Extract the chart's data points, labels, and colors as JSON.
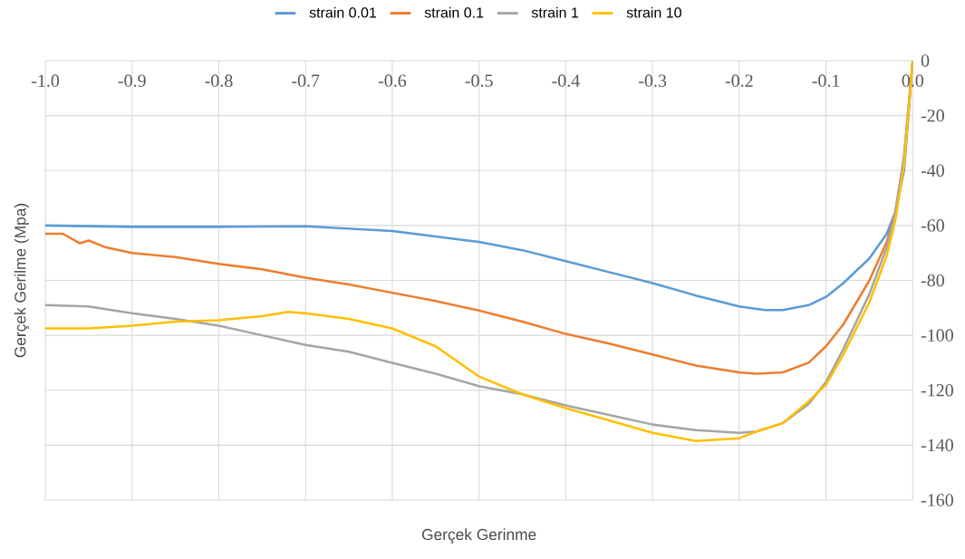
{
  "chart_data": {
    "type": "line",
    "xlabel": "Gerçek Gerinme",
    "ylabel": "Gerçek Gerilme (Mpa)",
    "xlim": [
      -1.0,
      0.0
    ],
    "ylim": [
      -160,
      0
    ],
    "xticks": [
      {
        "value": -1.0,
        "label": "-1.0"
      },
      {
        "value": -0.9,
        "label": "-0.9"
      },
      {
        "value": -0.8,
        "label": "-0.8"
      },
      {
        "value": -0.7,
        "label": "-0.7"
      },
      {
        "value": -0.6,
        "label": "-0.6"
      },
      {
        "value": -0.5,
        "label": "-0.5"
      },
      {
        "value": -0.4,
        "label": "-0.4"
      },
      {
        "value": -0.3,
        "label": "-0.3"
      },
      {
        "value": -0.2,
        "label": "-0.2"
      },
      {
        "value": -0.1,
        "label": "-0.1"
      },
      {
        "value": 0.0,
        "label": "0.0"
      }
    ],
    "yticks": [
      0,
      -20,
      -40,
      -60,
      -80,
      -100,
      -120,
      -140,
      -160
    ],
    "grid": true,
    "legend": "top",
    "marker": "none",
    "line_style": "solid",
    "series": [
      {
        "name": "strain 0.01",
        "color": "#5b9bd5",
        "x": [
          -1,
          -0.9,
          -0.8,
          -0.7,
          -0.6,
          -0.5,
          -0.45,
          -0.4,
          -0.35,
          -0.3,
          -0.25,
          -0.2,
          -0.17,
          -0.15,
          -0.12,
          -0.1,
          -0.08,
          -0.05,
          -0.03,
          -0.02,
          -0.01,
          0
        ],
        "values": [
          -60,
          -60.5,
          -60.5,
          -60.3,
          -62,
          -66,
          -69,
          -73,
          -77,
          -81,
          -85.5,
          -89.5,
          -90.8,
          -90.8,
          -89,
          -86,
          -81,
          -72,
          -63,
          -55,
          -40,
          0
        ]
      },
      {
        "name": "strain 0.1",
        "color": "#ed7d31",
        "x": [
          -1,
          -0.98,
          -0.96,
          -0.95,
          -0.93,
          -0.9,
          -0.85,
          -0.8,
          -0.75,
          -0.7,
          -0.65,
          -0.6,
          -0.55,
          -0.5,
          -0.45,
          -0.4,
          -0.35,
          -0.3,
          -0.25,
          -0.2,
          -0.18,
          -0.15,
          -0.12,
          -0.1,
          -0.08,
          -0.05,
          -0.03,
          -0.02,
          -0.01,
          0
        ],
        "values": [
          -63,
          -63,
          -66.5,
          -65.5,
          -68,
          -70,
          -71.5,
          -74,
          -76,
          -79,
          -81.5,
          -84.5,
          -87.5,
          -91,
          -95,
          -99.5,
          -103,
          -107,
          -111,
          -113.5,
          -114,
          -113.5,
          -110,
          -104,
          -96,
          -80,
          -66,
          -55,
          -35,
          0
        ]
      },
      {
        "name": "strain 1",
        "color": "#a5a5a5",
        "x": [
          -1,
          -0.95,
          -0.9,
          -0.85,
          -0.8,
          -0.75,
          -0.7,
          -0.65,
          -0.6,
          -0.55,
          -0.5,
          -0.45,
          -0.4,
          -0.35,
          -0.3,
          -0.25,
          -0.2,
          -0.18,
          -0.15,
          -0.12,
          -0.1,
          -0.08,
          -0.05,
          -0.03,
          -0.02,
          -0.01,
          0
        ],
        "values": [
          -89,
          -89.5,
          -92,
          -94,
          -96.5,
          -100,
          -103.5,
          -106,
          -110,
          -114,
          -118.5,
          -121.5,
          -125.5,
          -129,
          -132.5,
          -134.5,
          -135.5,
          -135,
          -132,
          -125,
          -117,
          -105,
          -85,
          -68,
          -55,
          -35,
          0
        ]
      },
      {
        "name": "strain 10",
        "color": "#ffc000",
        "x": [
          -1,
          -0.95,
          -0.9,
          -0.85,
          -0.8,
          -0.75,
          -0.72,
          -0.7,
          -0.65,
          -0.6,
          -0.55,
          -0.5,
          -0.45,
          -0.4,
          -0.35,
          -0.3,
          -0.25,
          -0.2,
          -0.18,
          -0.15,
          -0.12,
          -0.1,
          -0.08,
          -0.05,
          -0.03,
          -0.02,
          -0.01,
          0
        ],
        "values": [
          -97.5,
          -97.5,
          -96.5,
          -95,
          -94.5,
          -93,
          -91.5,
          -92,
          -94,
          -97.5,
          -104,
          -115,
          -121.5,
          -126.5,
          -131,
          -135.5,
          -138.5,
          -137.5,
          -135,
          -132,
          -124,
          -118,
          -107,
          -88,
          -71,
          -58,
          -38,
          0
        ]
      }
    ]
  }
}
